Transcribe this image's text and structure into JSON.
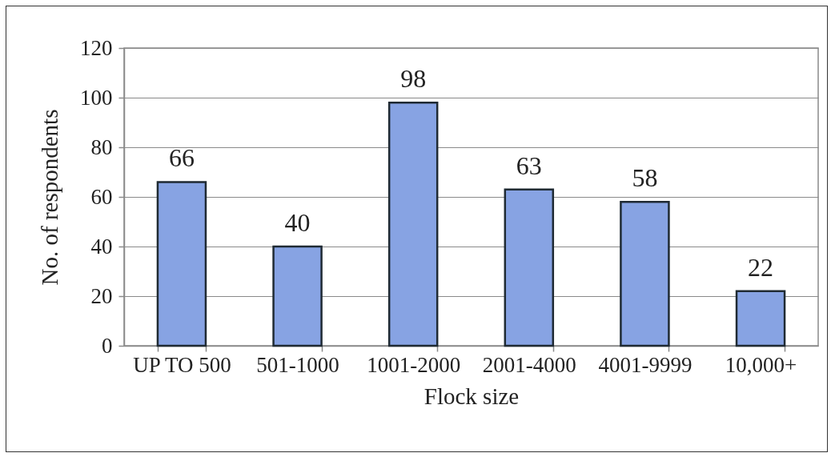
{
  "chart_data": {
    "type": "bar",
    "xlabel": "Flock size",
    "ylabel": "No. of respondents",
    "categories": [
      "UP TO 500",
      "501-1000",
      "1001-2000",
      "2001-4000",
      "4001-9999",
      "10,000+"
    ],
    "values": [
      66,
      40,
      98,
      63,
      58,
      22
    ],
    "color": "#87a3e3",
    "ylim": [
      0,
      120
    ],
    "yticks": [
      0,
      20,
      40,
      60,
      80,
      100,
      120
    ],
    "grid": "y",
    "data_labels": true
  }
}
